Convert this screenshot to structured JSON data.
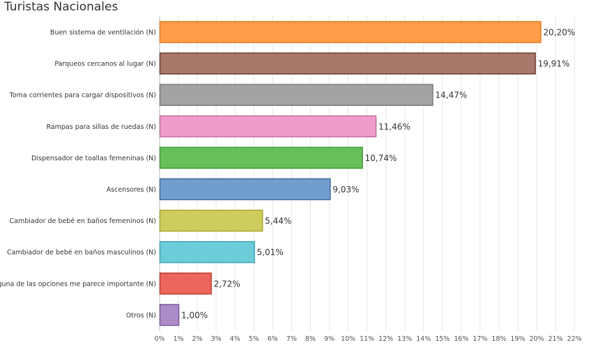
{
  "chart_data": {
    "type": "bar",
    "orientation": "horizontal",
    "title": "Turistas Nacionales",
    "categories": [
      "Buen sistema de ventilación (N)",
      "Parqueos cercanos al lugar (N)",
      "Toma corrientes para cargar dispositivos (N)",
      "Rampas para sillas de ruedas (N)",
      "Dispensador de toallas femeninas (N)",
      "Ascensores (N)",
      "Cambiador de  bebé en baños femeninos (N)",
      "Cambiador de bebé en baños masculinos (N)",
      "Ninguna de las opciones me parece importante (N)",
      "Otros (N)"
    ],
    "values": [
      20.2,
      19.91,
      14.47,
      11.46,
      10.74,
      9.03,
      5.44,
      5.01,
      2.72,
      1.0
    ],
    "value_labels": [
      "20,20%",
      "19,91%",
      "14,47%",
      "11,46%",
      "10,74%",
      "9,03%",
      "5,44%",
      "5,01%",
      "2,72%",
      "1,00%"
    ],
    "colors": [
      "#ff9d48",
      "#a8786a",
      "#a3a3a3",
      "#f09ccb",
      "#67bf5c",
      "#729ece",
      "#cdcc5d",
      "#6dccda",
      "#ed665d",
      "#ad8bc9"
    ],
    "border_colors": [
      "#e07a1f",
      "#6b3f34",
      "#7a7a7a",
      "#c070a0",
      "#3f9a35",
      "#3f6a9a",
      "#a8a732",
      "#3aa6b5",
      "#c03a33",
      "#7d5a9c"
    ],
    "x_ticks": [
      "0%",
      "1%",
      "2%",
      "3%",
      "4%",
      "5%",
      "6%",
      "7%",
      "8%",
      "9%",
      "10%",
      "11%",
      "12%",
      "13%",
      "14%",
      "15%",
      "16%",
      "17%",
      "18%",
      "19%",
      "20%",
      "21%",
      "22%"
    ],
    "xlim": [
      0,
      22.5
    ],
    "grid": true
  }
}
